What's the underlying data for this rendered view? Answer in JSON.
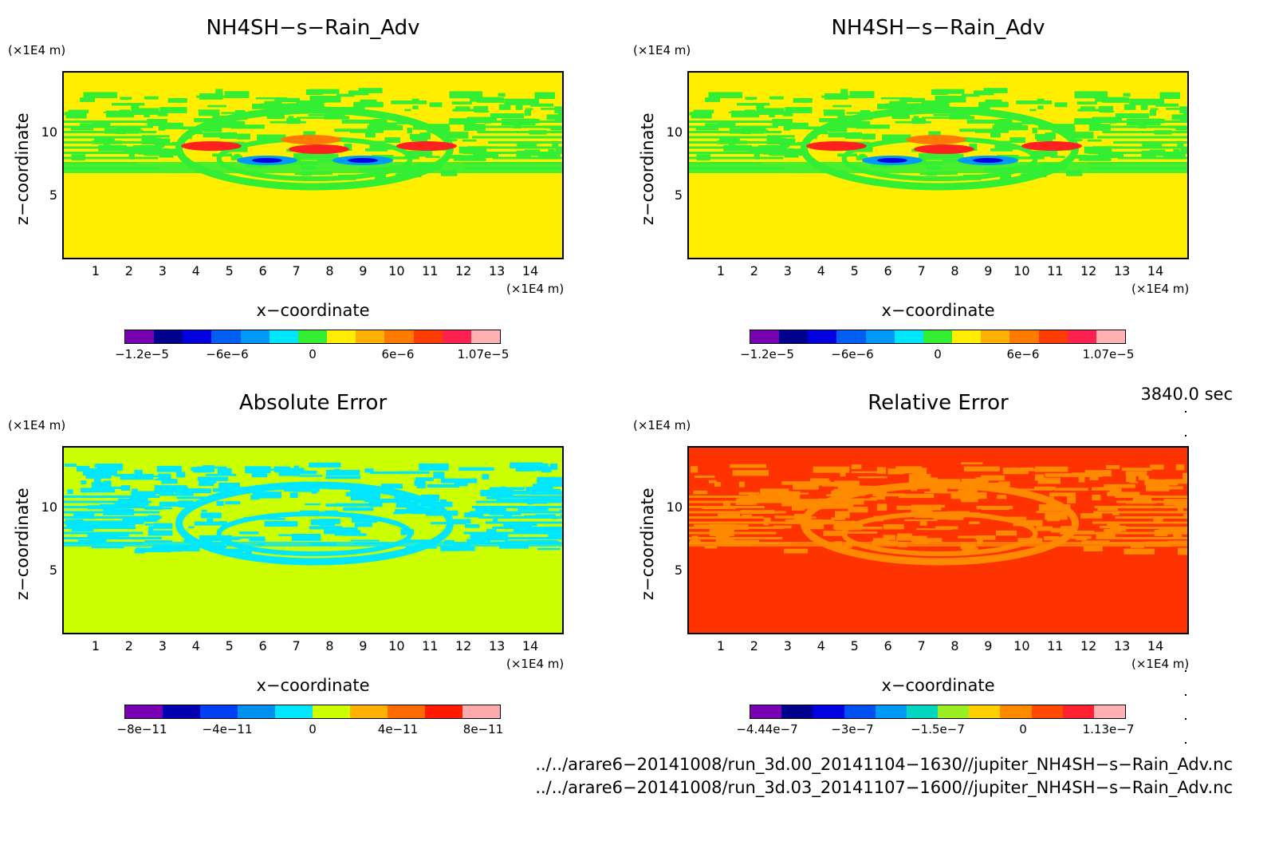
{
  "chart_data": [
    {
      "type": "heatmap",
      "title": "NH4SH−s−Rain_Adv",
      "xlabel": "x−coordinate",
      "ylabel": "z−coordinate",
      "x_unit": "(×1E4 m)",
      "y_unit": "(×1E4 m)",
      "xticks": [
        "1",
        "2",
        "3",
        "4",
        "5",
        "6",
        "7",
        "8",
        "9",
        "10",
        "11",
        "12",
        "13",
        "14"
      ],
      "yticks": [
        "5",
        "10"
      ],
      "xlim": [
        0,
        15
      ],
      "ylim": [
        0,
        15
      ],
      "colorbar_colors": [
        "#7a00b3",
        "#00008f",
        "#0000e0",
        "#005ff0",
        "#0099f5",
        "#00e6ff",
        "#33ee33",
        "#ffee00",
        "#ffb000",
        "#ff7a00",
        "#ff3c00",
        "#ff2050",
        "#ffb0b0"
      ],
      "colorbar_labels": [
        "−1.2e−5",
        "−6e−6",
        "0",
        "6e−6",
        "1.07e−5"
      ]
    },
    {
      "type": "heatmap",
      "title": "NH4SH−s−Rain_Adv",
      "xlabel": "x−coordinate",
      "ylabel": "z−coordinate",
      "x_unit": "(×1E4 m)",
      "y_unit": "(×1E4 m)",
      "xticks": [
        "1",
        "2",
        "3",
        "4",
        "5",
        "6",
        "7",
        "8",
        "9",
        "10",
        "11",
        "12",
        "13",
        "14"
      ],
      "yticks": [
        "5",
        "10"
      ],
      "xlim": [
        0,
        15
      ],
      "ylim": [
        0,
        15
      ],
      "colorbar_colors": [
        "#7a00b3",
        "#00008f",
        "#0000e0",
        "#005ff0",
        "#0099f5",
        "#00e6ff",
        "#33ee33",
        "#ffee00",
        "#ffb000",
        "#ff7a00",
        "#ff3c00",
        "#ff2050",
        "#ffb0b0"
      ],
      "colorbar_labels": [
        "−1.2e−5",
        "−6e−6",
        "0",
        "6e−6",
        "1.07e−5"
      ]
    },
    {
      "type": "heatmap",
      "title": "Absolute Error",
      "xlabel": "x−coordinate",
      "ylabel": "z−coordinate",
      "x_unit": "(×1E4 m)",
      "y_unit": "(×1E4 m)",
      "xticks": [
        "1",
        "2",
        "3",
        "4",
        "5",
        "6",
        "7",
        "8",
        "9",
        "10",
        "11",
        "12",
        "13",
        "14"
      ],
      "yticks": [
        "5",
        "10"
      ],
      "xlim": [
        0,
        15
      ],
      "ylim": [
        0,
        15
      ],
      "colorbar_colors": [
        "#7a00b3",
        "#0000b0",
        "#0040f0",
        "#0090f0",
        "#00e6ff",
        "#ccff00",
        "#ffb000",
        "#ff6a00",
        "#ff1a00",
        "#ffaaaa"
      ],
      "colorbar_labels": [
        "−8e−11",
        "−4e−11",
        "0",
        "4e−11",
        "8e−11"
      ]
    },
    {
      "type": "heatmap",
      "title": "Relative Error",
      "xlabel": "x−coordinate",
      "ylabel": "z−coordinate",
      "x_unit": "(×1E4 m)",
      "y_unit": "(×1E4 m)",
      "xticks": [
        "1",
        "2",
        "3",
        "4",
        "5",
        "6",
        "7",
        "8",
        "9",
        "10",
        "11",
        "12",
        "13",
        "14"
      ],
      "yticks": [
        "5",
        "10"
      ],
      "xlim": [
        0,
        15
      ],
      "ylim": [
        0,
        15
      ],
      "colorbar_colors": [
        "#7a00b3",
        "#00008f",
        "#0000e0",
        "#0050f0",
        "#0099f5",
        "#00d6c0",
        "#99ee22",
        "#ffd000",
        "#ff8a00",
        "#ff4a00",
        "#ff2030",
        "#ffb0b0"
      ],
      "colorbar_labels": [
        "−4.44e−7",
        "−3e−7",
        "−1.5e−7",
        "0",
        "1.13e−7"
      ]
    }
  ],
  "time_label": "3840.0 sec",
  "file1": "../../arare6−20141008/run_3d.00_20141104−1630//jupiter_NH4SH−s−Rain_Adv.nc",
  "file2": "../../arare6−20141008/run_3d.03_20141107−1600//jupiter_NH4SH−s−Rain_Adv.nc"
}
